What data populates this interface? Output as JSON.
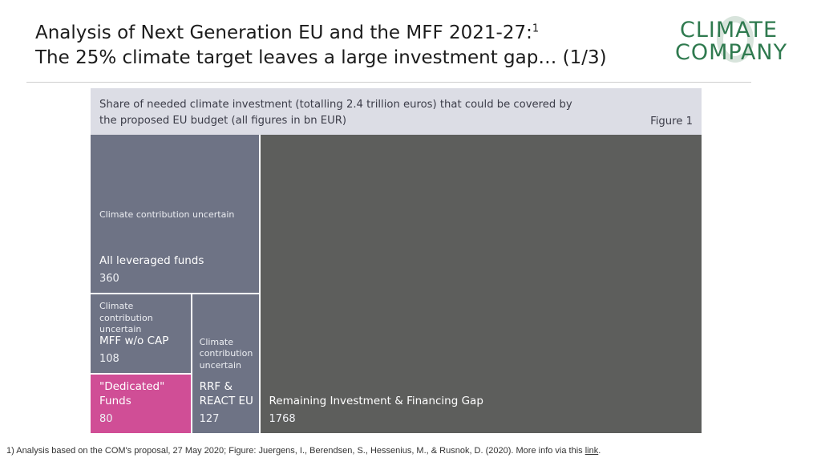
{
  "slide": {
    "title_line1": "Analysis of Next Generation EU and the MFF 2021-27:",
    "title_superscript": "1",
    "title_line2": "The 25% climate target leaves a large investment gap… (1/3)"
  },
  "logo": {
    "line1": "CLIMATE",
    "line2": "COMPANY",
    "color": "#2f7a4f"
  },
  "figure": {
    "caption_line1": "Share of needed climate investment (totalling 2.4 trillion euros) that could be covered by",
    "caption_line2": "the proposed EU budget (all figures in bn EUR)",
    "label": "Figure 1"
  },
  "chart_data": {
    "type": "treemap",
    "title": "Share of needed climate investment (totalling 2.4 trillion euros) that could be covered by the proposed EU budget (all figures in bn EUR)",
    "unit": "bn EUR",
    "total": 2443,
    "items": [
      {
        "name": "Remaining Investment & Financing Gap",
        "value": 1768,
        "note": "",
        "color": "#5d5e5c"
      },
      {
        "name": "All leveraged funds",
        "value": 360,
        "note": "Climate contribution uncertain",
        "color": "#6e7385"
      },
      {
        "name": "MFF w/o CAP",
        "value": 108,
        "note": "Climate contribution uncertain",
        "color": "#6e7385"
      },
      {
        "name": "\"Dedicated\" Funds",
        "value": 80,
        "note": "",
        "color": "#d04e96"
      },
      {
        "name": "RRF & REACT EU",
        "value": 127,
        "note": "Climate contribution uncertain",
        "color": "#6e7385"
      }
    ]
  },
  "footnote": {
    "text": "1) Analysis based on the COM's proposal, 27 May 2020; Figure: Juergens, I., Berendsen, S., Hessenius, M., & Rusnok, D. (2020). More info via this ",
    "link_text": "link",
    "end": "."
  }
}
